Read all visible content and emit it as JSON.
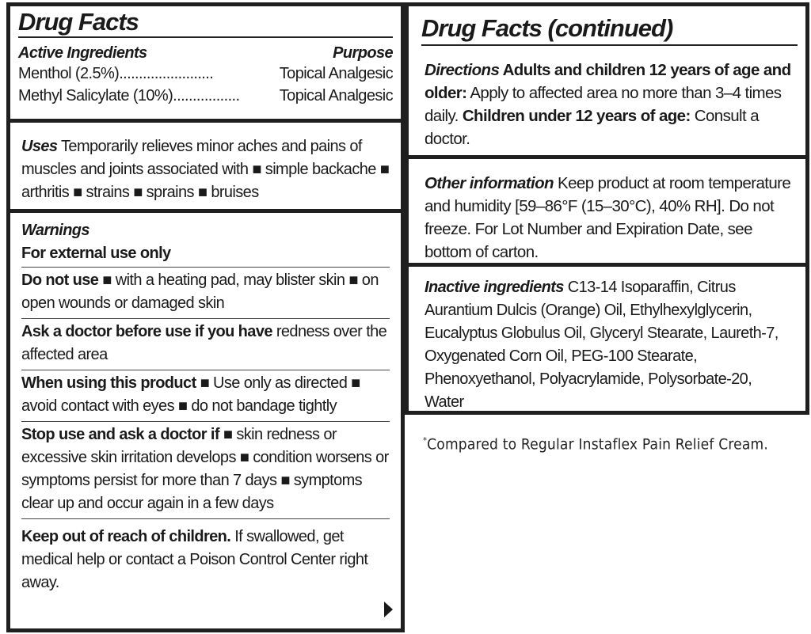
{
  "left": {
    "title": "Drug Facts",
    "active": {
      "header": "Active Ingredients",
      "purpose_header": "Purpose",
      "rows": [
        {
          "name": "Menthol (2.5%)",
          "dots": "........................",
          "purpose": "Topical Analgesic"
        },
        {
          "name": "Methyl Salicylate (10%)",
          "dots": ".................",
          "purpose": "Topical Analgesic"
        }
      ]
    },
    "uses": {
      "heading": "Uses",
      "text": " Temporarily relieves minor aches and pains of muscles and joints associated with ■ simple backache ■ arthritis ■ strains ■ sprains ■ bruises"
    },
    "warnings": {
      "heading": "Warnings",
      "external": "For external use only",
      "items": [
        {
          "bold": "Do not use",
          "text": " ■ with a heating pad, may blister skin ■ on open wounds or damaged skin"
        },
        {
          "bold": "Ask a doctor before use if you have",
          "text": " redness over the affected area"
        },
        {
          "bold": "When using this product",
          "text": " ■ Use only as directed ■ avoid contact with eyes ■ do not bandage tightly"
        },
        {
          "bold": "Stop use and ask a doctor if",
          "text": " ■ skin redness or excessive skin irritation develops ■ condition worsens or symptoms persist for more than 7 days ■ symptoms clear up and occur again in a few days"
        },
        {
          "bold": "Keep out of reach of children.",
          "text": " If swallowed, get medical help or contact a Poison Control Center right away."
        }
      ]
    }
  },
  "right": {
    "title": "Drug Facts (continued)",
    "directions": {
      "heading": "Directions",
      "b1": " Adults and children 12 years of age and older:",
      "t1": " Apply to affected area no more than 3–4 times daily. ",
      "b2": "Children under 12 years of age:",
      "t2": " Consult a doctor."
    },
    "other": {
      "heading": "Other information",
      "text": " Keep product at room temperature and humidity [59–86°F (15–30°C), 40% RH]. Do not freeze. For Lot Number and Expiration Date, see bottom of carton."
    },
    "inactive": {
      "heading": "Inactive ingredients",
      "text": " C13-14 Isoparaffin, Citrus Aurantium Dulcis (Orange) Oil, Ethylhexylglycerin, Eucalyptus Globulus Oil, Glyceryl Stearate, Laureth-7, Oxygenated Corn Oil, PEG-100 Stearate, Phenoxyethanol, Polyacrylamide, Polysorbate-20, Water"
    }
  },
  "footnote": {
    "mark": "*",
    "text": "Compared to Regular Instaflex Pain Relief Cream."
  },
  "icons": {
    "continue": "triangle-right-icon"
  }
}
